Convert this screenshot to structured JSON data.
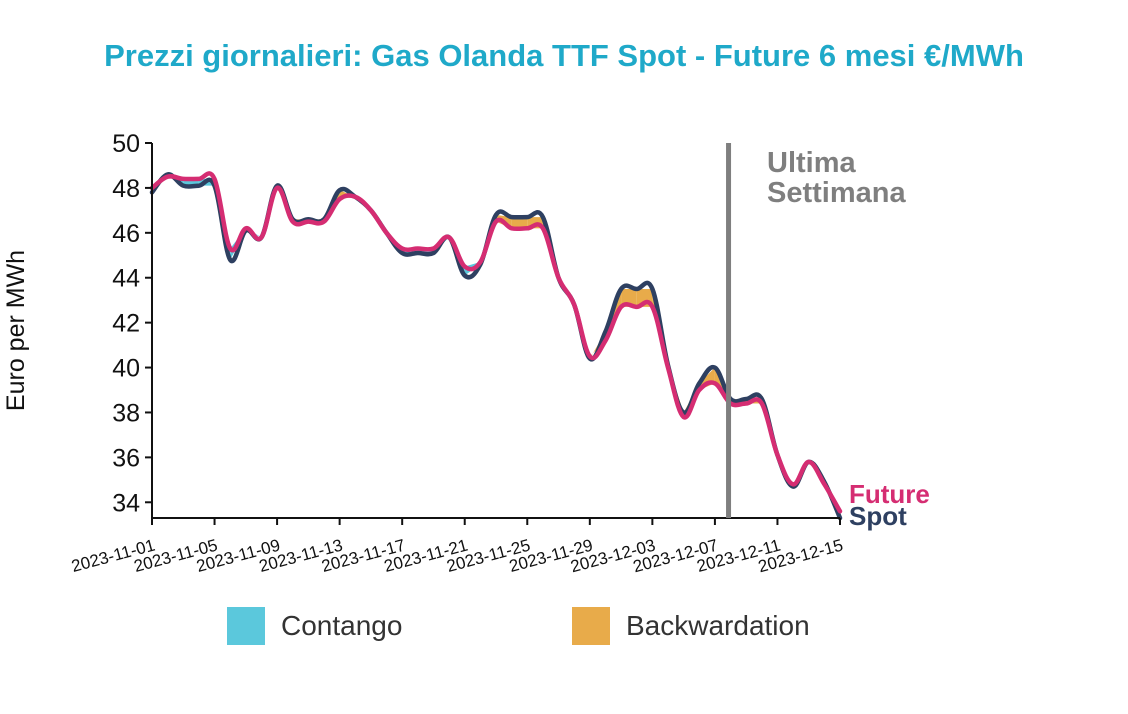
{
  "title": "Prezzi giornalieri: Gas Olanda TTF Spot - Future 6 mesi €/MWh",
  "chart_data": {
    "type": "line",
    "title": "Prezzi giornalieri: Gas Olanda TTF Spot - Future 6 mesi €/MWh",
    "xlabel": "",
    "ylabel": "Euro per MWh",
    "ylim": [
      33.3,
      50
    ],
    "yticks": [
      34,
      36,
      38,
      40,
      42,
      44,
      46,
      48,
      50
    ],
    "xlim": [
      "2023-11-01",
      "2023-12-15"
    ],
    "xticks": [
      "2023-11-01",
      "2023-11-05",
      "2023-11-09",
      "2023-11-13",
      "2023-11-17",
      "2023-11-21",
      "2023-11-25",
      "2023-11-29",
      "2023-12-03",
      "2023-12-07",
      "2023-12-11",
      "2023-12-15"
    ],
    "x": [
      "2023-11-01",
      "2023-11-02",
      "2023-11-03",
      "2023-11-04",
      "2023-11-05",
      "2023-11-06",
      "2023-11-07",
      "2023-11-08",
      "2023-11-09",
      "2023-11-10",
      "2023-11-11",
      "2023-11-12",
      "2023-11-13",
      "2023-11-14",
      "2023-11-15",
      "2023-11-16",
      "2023-11-17",
      "2023-11-18",
      "2023-11-19",
      "2023-11-20",
      "2023-11-21",
      "2023-11-22",
      "2023-11-23",
      "2023-11-24",
      "2023-11-25",
      "2023-11-26",
      "2023-11-27",
      "2023-11-28",
      "2023-11-29",
      "2023-11-30",
      "2023-12-01",
      "2023-12-02",
      "2023-12-03",
      "2023-12-04",
      "2023-12-05",
      "2023-12-06",
      "2023-12-07",
      "2023-12-08",
      "2023-12-09",
      "2023-12-10",
      "2023-12-11",
      "2023-12-12",
      "2023-12-13",
      "2023-12-14",
      "2023-12-15"
    ],
    "series": [
      {
        "name": "Spot",
        "color": "#2e4061",
        "values": [
          47.8,
          48.6,
          48.1,
          48.1,
          48.1,
          44.8,
          46.1,
          45.8,
          48.1,
          46.6,
          46.6,
          46.6,
          47.9,
          47.6,
          47.0,
          46.0,
          45.1,
          45.1,
          45.1,
          45.8,
          44.1,
          44.6,
          46.8,
          46.7,
          46.7,
          46.7,
          44.0,
          42.8,
          40.4,
          41.6,
          43.5,
          43.5,
          43.5,
          40.1,
          38.0,
          39.3,
          40.0,
          38.6,
          38.6,
          38.6,
          36.1,
          34.7,
          35.8,
          34.9,
          33.3
        ]
      },
      {
        "name": "Future",
        "color": "#d52d72",
        "values": [
          48.0,
          48.5,
          48.4,
          48.4,
          48.4,
          45.3,
          46.2,
          45.8,
          48.0,
          46.5,
          46.5,
          46.5,
          47.5,
          47.6,
          47.0,
          46.0,
          45.3,
          45.3,
          45.3,
          45.8,
          44.5,
          44.7,
          46.5,
          46.2,
          46.2,
          46.2,
          44.0,
          42.8,
          40.5,
          41.2,
          42.7,
          42.7,
          42.7,
          40.0,
          37.8,
          39.0,
          39.3,
          38.4,
          38.4,
          38.4,
          36.1,
          34.8,
          35.8,
          34.8,
          33.6
        ]
      }
    ],
    "vertical_marker": {
      "x": "2023-12-08",
      "label": [
        "Ultima",
        "Settimana"
      ],
      "color": "#7f7f7f"
    },
    "fill_colors": {
      "contango": "#5bc8dc",
      "backwardation": "#e8ab4a"
    },
    "legend": {
      "placement": "bottom",
      "entries": [
        "Contango",
        "Backwardation"
      ]
    },
    "end_labels": [
      "Future",
      "Spot"
    ],
    "grid": false
  },
  "legend": {
    "contango": "Contango",
    "backwardation": "Backwardation"
  }
}
